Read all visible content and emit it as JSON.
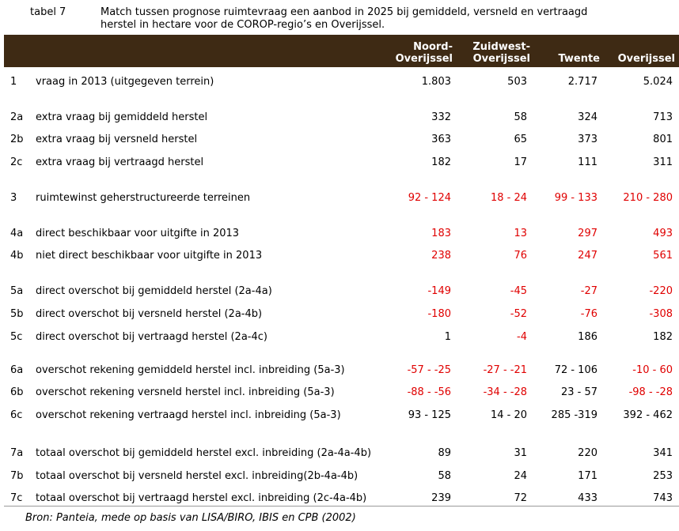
{
  "caption": {
    "number": "tabel 7",
    "line1": "Match tussen prognose ruimtevraag een aanbod in 2025 bij gemiddeld, versneld en vertraagd",
    "line2": "herstel in hectare voor de COROP-regio’s en Overijssel."
  },
  "headers": {
    "c1a": "Noord-",
    "c1b": "Overijssel",
    "c2a": "Zuidwest-",
    "c2b": "Overijssel",
    "c3": "Twente",
    "c4": "Overijssel"
  },
  "colors": {
    "header_bg": "#3e2a14",
    "negative": "#e00000"
  },
  "rows": [
    {
      "num": "1",
      "label": "vraag in 2013 (uitgegeven terrein)",
      "v": [
        "1.803",
        "503",
        "2.717",
        "5.024"
      ],
      "red": [
        false,
        false,
        false,
        false
      ]
    },
    {
      "num": "2a",
      "label": "extra vraag bij gemiddeld herstel",
      "v": [
        "332",
        "58",
        "324",
        "713"
      ],
      "red": [
        false,
        false,
        false,
        false
      ]
    },
    {
      "num": "2b",
      "label": "extra vraag bij versneld herstel",
      "v": [
        "363",
        "65",
        "373",
        "801"
      ],
      "red": [
        false,
        false,
        false,
        false
      ]
    },
    {
      "num": "2c",
      "label": "extra vraag bij vertraagd herstel",
      "v": [
        "182",
        "17",
        "111",
        "311"
      ],
      "red": [
        false,
        false,
        false,
        false
      ]
    },
    {
      "num": "3",
      "label": "ruimtewinst geherstructureerde terreinen",
      "v": [
        "92 - 124",
        "18 - 24",
        "99 - 133",
        "210 - 280"
      ],
      "red": [
        true,
        true,
        true,
        true
      ]
    },
    {
      "num": "4a",
      "label": "direct beschikbaar voor uitgifte in 2013",
      "v": [
        "183",
        "13",
        "297",
        "493"
      ],
      "red": [
        true,
        true,
        true,
        true
      ]
    },
    {
      "num": "4b",
      "label": "niet direct beschikbaar voor uitgifte in 2013",
      "v": [
        "238",
        "76",
        "247",
        "561"
      ],
      "red": [
        true,
        true,
        true,
        true
      ]
    },
    {
      "num": "5a",
      "label": "direct overschot bij gemiddeld herstel (2a-4a)",
      "v": [
        "-149",
        "-45",
        "-27",
        "-220"
      ],
      "red": [
        true,
        true,
        true,
        true
      ]
    },
    {
      "num": "5b",
      "label": "direct overschot bij versneld herstel (2a-4b)",
      "v": [
        "-180",
        "-52",
        "-76",
        "-308"
      ],
      "red": [
        true,
        true,
        true,
        true
      ]
    },
    {
      "num": "5c",
      "label": "direct overschot bij vertraagd herstel (2a-4c)",
      "v": [
        "1",
        "-4",
        "186",
        "182"
      ],
      "red": [
        false,
        true,
        false,
        false
      ]
    },
    {
      "num": "6a",
      "label": "overschot rekening gemiddeld herstel incl. inbreiding (5a-3)",
      "v": [
        "-57 - -25",
        "-27 - -21",
        "72 - 106",
        "-10 - 60"
      ],
      "red": [
        true,
        true,
        false,
        true
      ]
    },
    {
      "num": "6b",
      "label": "overschot rekening versneld herstel incl. inbreiding (5a-3)",
      "v": [
        "-88 - -56",
        "-34 - -28",
        "23 - 57",
        "-98 - -28"
      ],
      "red": [
        true,
        true,
        false,
        true
      ]
    },
    {
      "num": "6c",
      "label": "overschot rekening vertraagd herstel incl. inbreiding (5a-3)",
      "v": [
        "93 - 125",
        "14 - 20",
        "285 -319",
        "392 - 462"
      ],
      "red": [
        false,
        false,
        false,
        false
      ]
    },
    {
      "num": "7a",
      "label": "totaal overschot bij gemiddeld herstel excl. inbreiding (2a-4a-4b)",
      "v": [
        "89",
        "31",
        "220",
        "341"
      ],
      "red": [
        false,
        false,
        false,
        false
      ]
    },
    {
      "num": "7b",
      "label": "totaal overschot bij versneld herstel excl. inbreiding(2b-4a-4b)",
      "v": [
        "58",
        "24",
        "171",
        "253"
      ],
      "red": [
        false,
        false,
        false,
        false
      ]
    },
    {
      "num": "7c",
      "label": "totaal overschot bij vertraagd herstel excl. inbreiding (2c-4a-4b)",
      "v": [
        "239",
        "72",
        "433",
        "743"
      ],
      "red": [
        false,
        false,
        false,
        false
      ]
    }
  ],
  "source": "Bron: Panteia, mede op basis van LISA/BIRO, IBIS en CPB (2002)"
}
